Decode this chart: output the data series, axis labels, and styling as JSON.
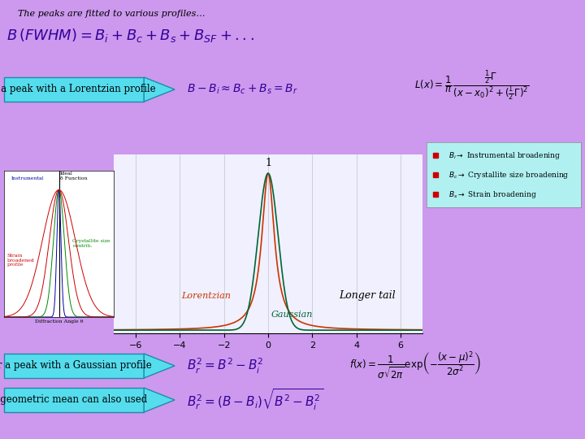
{
  "background_color": "#cc99ee",
  "title_text": "The peaks are fitted to various profiles…",
  "lorentz_label": "For a peak with a Lorentzian profile",
  "gaussian_label": "For a peak with a Gaussian profile",
  "geomean_label": "A geometric mean can also used",
  "longer_tail_text": "Longer tail",
  "lorentzian_text": "Lorentzian",
  "gaussian_text": "Gaussian",
  "lorentzian_color": "#cc3300",
  "gaussian_color": "#006633",
  "plot_bg": "#f0f0ff",
  "legend_bg": "#b0f0f0",
  "legend_texts": [
    "$B_i \\rightarrow$ Instrumental broadening",
    "$B_c \\rightarrow$ Crystallite size broadening",
    "$B_s \\rightarrow$ Strain broadening"
  ],
  "arrow_color": "#55ddee",
  "arrow_border": "#2288aa",
  "xlabel_ticks": [
    -6,
    -4,
    -2,
    0,
    2,
    4,
    6
  ],
  "lorentz_gamma": 0.7,
  "gauss_sigma": 0.45
}
